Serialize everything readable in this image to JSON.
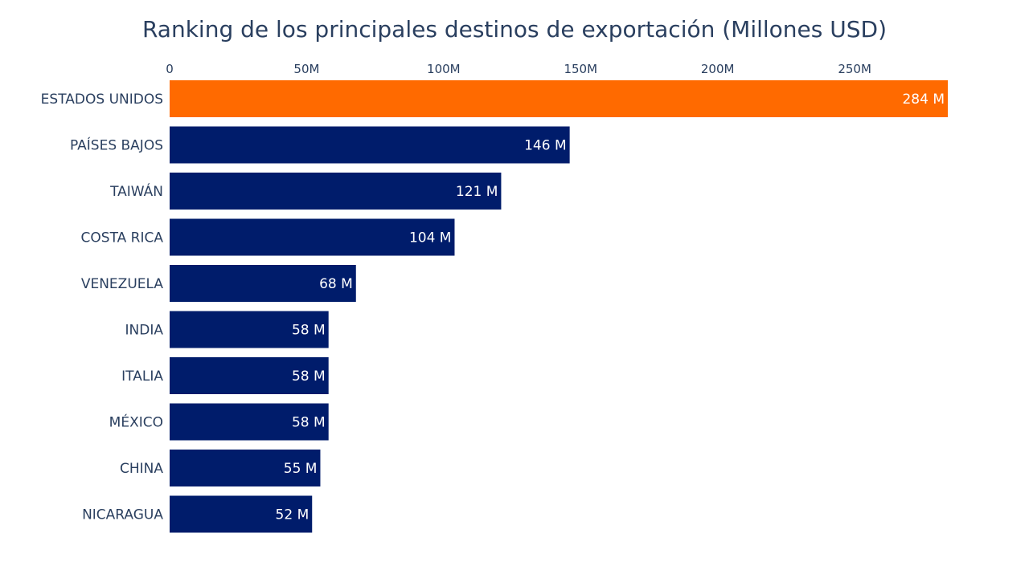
{
  "chart_data": {
    "type": "bar",
    "orientation": "horizontal",
    "title": "Ranking de los principales destinos de exportación (Millones USD)",
    "xlabel": "",
    "ylabel": "",
    "x_axis_position": "top",
    "xlim": [
      0,
      284
    ],
    "x_ticks": [
      0,
      50,
      100,
      150,
      200,
      250
    ],
    "x_tick_labels": [
      "0",
      "50M",
      "100M",
      "150M",
      "200M",
      "250M"
    ],
    "grid": false,
    "categories": [
      "ESTADOS UNIDOS",
      "PAÍSES BAJOS",
      "TAIWÁN",
      "COSTA RICA",
      "VENEZUELA",
      "INDIA",
      "ITALIA",
      "MÉXICO",
      "CHINA",
      "NICARAGUA"
    ],
    "values": [
      284,
      146,
      121,
      104,
      68,
      58,
      58,
      58,
      55,
      52
    ],
    "data_labels": [
      "284 M",
      "146 M",
      "121 M",
      "104 M",
      "68 M",
      "58 M",
      "58 M",
      "58 M",
      "55 M",
      "52 M"
    ],
    "highlight_color": "#ff6a00",
    "bar_color": "#001c6b",
    "highlight_index": 0
  }
}
